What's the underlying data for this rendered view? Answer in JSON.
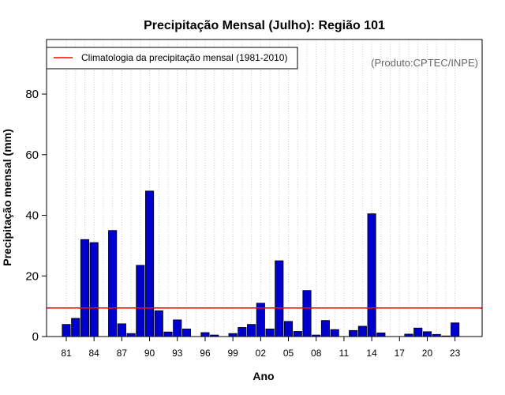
{
  "chart_data": {
    "type": "bar",
    "title": "Precipitação Mensal (Julho): Região 101",
    "xlabel": "Ano",
    "ylabel": "Precipitação mensal (mm)",
    "source": "(Produto:CPTEC/INPE)",
    "legend": {
      "label": "Climatologia da precipitação mensal (1981-2010)",
      "position": "top-left"
    },
    "ylim": [
      0,
      98
    ],
    "yticks": [
      0,
      20,
      40,
      60,
      80
    ],
    "xtick_labels": [
      "81",
      "84",
      "87",
      "90",
      "93",
      "96",
      "99",
      "02",
      "05",
      "08",
      "11",
      "14",
      "17",
      "20",
      "23"
    ],
    "categories": [
      "1981",
      "1982",
      "1983",
      "1984",
      "1985",
      "1986",
      "1987",
      "1988",
      "1989",
      "1990",
      "1991",
      "1992",
      "1993",
      "1994",
      "1995",
      "1996",
      "1997",
      "1998",
      "1999",
      "2000",
      "2001",
      "2002",
      "2003",
      "2004",
      "2005",
      "2006",
      "2007",
      "2008",
      "2009",
      "2010",
      "2011",
      "2012",
      "2013",
      "2014",
      "2015",
      "2016",
      "2017",
      "2018",
      "2019",
      "2020",
      "2021",
      "2022",
      "2023"
    ],
    "values": [
      4.0,
      6.0,
      32.0,
      31.0,
      0,
      35.0,
      4.2,
      1.0,
      23.5,
      48.0,
      8.5,
      1.5,
      5.5,
      2.5,
      0,
      1.3,
      0.5,
      0,
      1.0,
      3.0,
      4.0,
      11.0,
      2.5,
      25.0,
      5.0,
      1.7,
      15.2,
      0.5,
      5.3,
      2.3,
      0,
      2.0,
      3.4,
      40.5,
      1.2,
      0,
      0,
      0.8,
      2.8,
      1.6,
      0.7,
      0.2,
      4.5
    ],
    "climatology": 9.4,
    "grid": true,
    "colors": {
      "bar": "#0000cc",
      "climatology": "#ff0000",
      "grid": "#cccccc"
    }
  }
}
